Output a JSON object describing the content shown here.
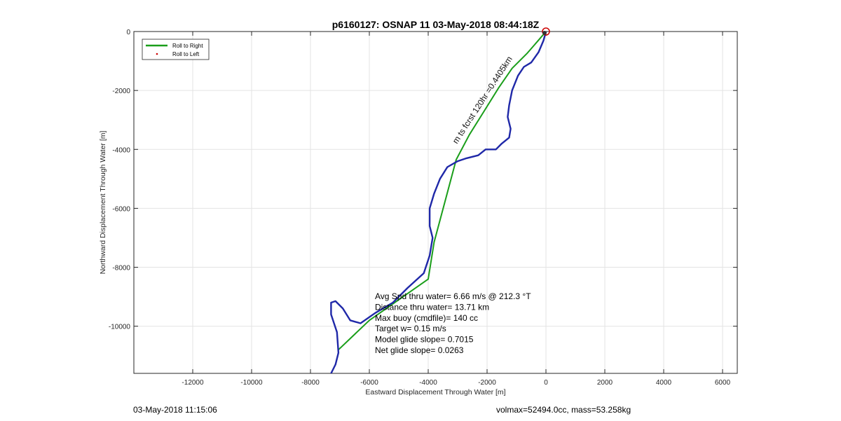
{
  "chart_data": {
    "type": "line",
    "title": "p6160127: OSNAP 11 03-May-2018 08:44:18Z",
    "xlabel": "Eastward Displacement Through Water [m]",
    "ylabel": "Northward Displacement Through Water [m]",
    "xlim": [
      -14000,
      6500
    ],
    "ylim": [
      -11600,
      0
    ],
    "grid": true,
    "xticks": [
      -12000,
      -10000,
      -8000,
      -6000,
      -4000,
      -2000,
      0,
      2000,
      4000,
      6000
    ],
    "yticks": [
      0,
      -2000,
      -4000,
      -6000,
      -8000,
      -10000
    ],
    "legend": {
      "placement": "top-left",
      "entries": [
        {
          "label": "Roll to Right",
          "color": "#1a9e1a",
          "marker": "line"
        },
        {
          "label": "Roll to Left",
          "color": "#cc0000",
          "marker": "dot"
        }
      ]
    },
    "series": [
      {
        "color": "#1a9e1a",
        "x": [
          0,
          -300,
          -650,
          -1150,
          -1600,
          -2100,
          -2600,
          -3050,
          -3800,
          -4000,
          -6000,
          -7050
        ],
        "y": [
          0,
          -350,
          -750,
          -1250,
          -1900,
          -2700,
          -3500,
          -4350,
          -7150,
          -8400,
          -9800,
          -10800
        ]
      },
      {
        "color": "#1f28a8",
        "x": [
          0,
          -80,
          -250,
          -500,
          -750,
          -950,
          -1150,
          -1250,
          -1300,
          -1200,
          -1250,
          -1500,
          -1700,
          -2050,
          -2300,
          -2700,
          -3000,
          -3350,
          -3600,
          -3800,
          -3950,
          -3950,
          -3850,
          -3950,
          -4150,
          -4700,
          -5200,
          -5800,
          -6300,
          -6650,
          -6900,
          -7150,
          -7300,
          -7300,
          -7100,
          -7050,
          -7150,
          -7350
        ],
        "y": [
          0,
          -300,
          -700,
          -1050,
          -1200,
          -1500,
          -2000,
          -2500,
          -2900,
          -3300,
          -3600,
          -3800,
          -4000,
          -4000,
          -4200,
          -4300,
          -4400,
          -4600,
          -5000,
          -5500,
          -6000,
          -6600,
          -7000,
          -7600,
          -8200,
          -8700,
          -9200,
          -9550,
          -9900,
          -9800,
          -9400,
          -9150,
          -9200,
          -9600,
          -10200,
          -10900,
          -11300,
          -11700
        ]
      }
    ],
    "start_marker": {
      "x": 0,
      "y": 0,
      "color": "#cc0000"
    },
    "annotations": [
      {
        "text": "Avg Spd thru water=  6.66 m/s @ 212.3 °T"
      },
      {
        "text": "Distance thru water= 13.71 km"
      },
      {
        "text": "Max buoy (cmdfile)= 140 cc"
      },
      {
        "text": "Target w= 0.15 m/s"
      },
      {
        "text": "Model glide slope= 0.7015"
      },
      {
        "text": "Net glide slope= 0.0263"
      }
    ],
    "rotated_label": {
      "text": "m ts fcrst 120hr =0.4405km"
    }
  },
  "footer": {
    "left": "03-May-2018 11:15:06",
    "right": "volmax=52494.0cc, mass=53.258kg"
  }
}
